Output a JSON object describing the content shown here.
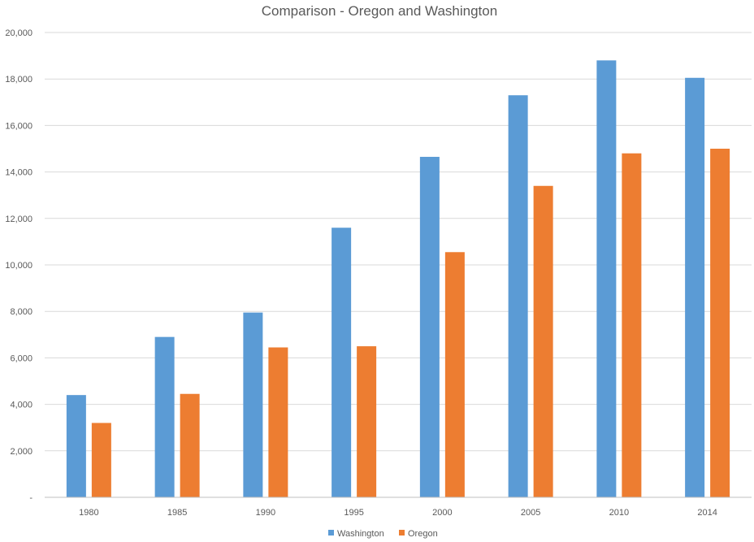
{
  "chart_data": {
    "type": "bar",
    "title": "Comparison - Oregon and Washington",
    "categories": [
      "1980",
      "1985",
      "1990",
      "1995",
      "2000",
      "2005",
      "2010",
      "2014"
    ],
    "series": [
      {
        "name": "Washington",
        "color": "#5B9BD5",
        "values": [
          4400,
          6900,
          7950,
          11600,
          14650,
          17300,
          18800,
          18050
        ]
      },
      {
        "name": "Oregon",
        "color": "#ED7D31",
        "values": [
          3200,
          4450,
          6450,
          6500,
          10550,
          13400,
          14800,
          15000
        ]
      }
    ],
    "ylim": [
      0,
      20000
    ],
    "yticks": [
      "-",
      "2,000",
      "4,000",
      "6,000",
      "8,000",
      "10,000",
      "12,000",
      "14,000",
      "16,000",
      "18,000",
      "20,000"
    ],
    "ytick_values": [
      0,
      2000,
      4000,
      6000,
      8000,
      10000,
      12000,
      14000,
      16000,
      18000,
      20000
    ],
    "grid": true,
    "legend_position": "bottom"
  }
}
